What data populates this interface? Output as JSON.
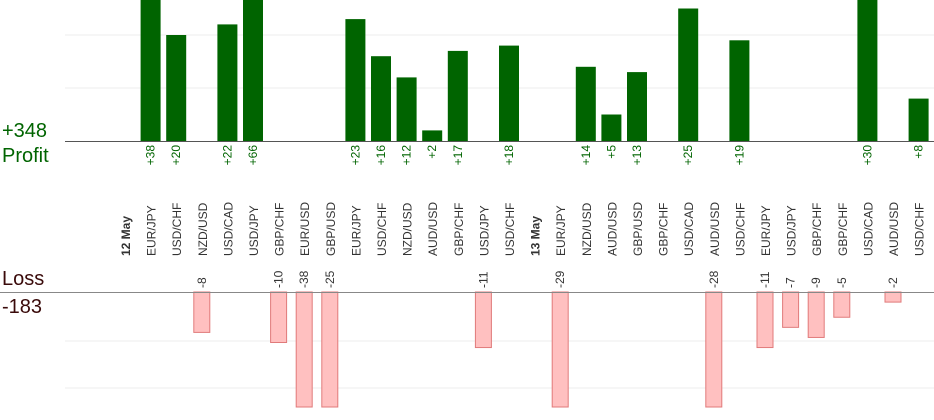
{
  "summary": {
    "profit_total": "+348",
    "profit_label": "Profit",
    "loss_label": "Loss",
    "loss_total": "-183"
  },
  "colors": {
    "profit_bar": "#006400",
    "loss_bar": "#ffc0c0",
    "loss_bar_border": "#e07a7a",
    "profit_text": "#006400",
    "loss_text": "#3a0a0a"
  },
  "chart_data": {
    "type": "bar",
    "date_groups": [
      "12 May",
      "13 May"
    ],
    "categories": [
      "12 May",
      "EUR/JPY",
      "USD/CHF",
      "NZD/USD",
      "USD/CAD",
      "USD/JPY",
      "GBP/CHF",
      "EUR/USD",
      "GBP/USD",
      "EUR/JPY",
      "USD/CHF",
      "NZD/USD",
      "AUD/USD",
      "GBP/CHF",
      "USD/JPY",
      "USD/CHF",
      "13 May",
      "EUR/JPY",
      "NZD/USD",
      "AUD/USD",
      "GBP/USD",
      "GBP/CHF",
      "USD/CAD",
      "AUD/USD",
      "USD/CHF",
      "EUR/JPY",
      "USD/JPY",
      "GBP/CHF",
      "GBP/CHF",
      "USD/CAD",
      "AUD/USD",
      "USD/CHF"
    ],
    "profit": [
      null,
      38,
      20,
      null,
      22,
      66,
      null,
      null,
      null,
      23,
      16,
      12,
      2,
      17,
      null,
      18,
      null,
      null,
      14,
      5,
      13,
      null,
      25,
      null,
      19,
      null,
      null,
      null,
      null,
      30,
      null,
      8
    ],
    "loss": [
      null,
      null,
      null,
      -8,
      null,
      null,
      -10,
      -38,
      -25,
      null,
      null,
      null,
      null,
      null,
      -11,
      null,
      null,
      -29,
      null,
      null,
      null,
      null,
      null,
      -28,
      null,
      -11,
      -7,
      -9,
      -5,
      null,
      -2,
      null
    ],
    "profit_labels": [
      "",
      "+38",
      "+20",
      "",
      "+22",
      "+66",
      "",
      "",
      "",
      "+23",
      "+16",
      "+12",
      "+2",
      "+17",
      "",
      "+18",
      "",
      "",
      "+14",
      "+5",
      "+13",
      "",
      "+25",
      "",
      "+19",
      "",
      "",
      "",
      "",
      "+30",
      "",
      "+8"
    ],
    "loss_labels": [
      "",
      "",
      "",
      "-8",
      "",
      "",
      "-10",
      "-38",
      "-25",
      "",
      "",
      "",
      "",
      "",
      "-11",
      "",
      "",
      "-29",
      "",
      "",
      "",
      "",
      "",
      "-28",
      "",
      "-11",
      "-7",
      "-9",
      "-5",
      "",
      "-2",
      ""
    ],
    "profit_ylim": [
      0,
      27
    ],
    "loss_ylim": [
      -25,
      0
    ],
    "grid": true
  }
}
